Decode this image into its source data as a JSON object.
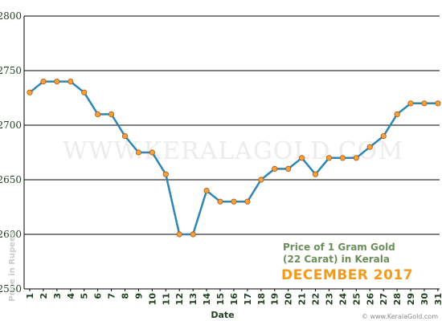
{
  "chart_data": {
    "type": "line",
    "title_lines": [
      "Price of 1 Gram Gold",
      "(22 Carat) in Kerala"
    ],
    "subtitle": "DECEMBER 2017",
    "xlabel": "Date",
    "ylabel": "Price in Rupees",
    "watermark": "WWW.KERALAGOLD.COM",
    "footer": "© www.KeralaGold.com",
    "ylim": [
      2550,
      2800
    ],
    "yticks": [
      2550,
      2600,
      2650,
      2700,
      2750,
      2800
    ],
    "x": [
      1,
      2,
      3,
      4,
      5,
      6,
      7,
      8,
      9,
      10,
      11,
      12,
      13,
      14,
      15,
      16,
      17,
      18,
      19,
      20,
      21,
      22,
      23,
      24,
      25,
      26,
      27,
      28,
      29,
      30,
      31
    ],
    "values": [
      2730,
      2740,
      2740,
      2740,
      2730,
      2710,
      2710,
      2690,
      2675,
      2675,
      2655,
      2600,
      2600,
      2640,
      2630,
      2630,
      2630,
      2650,
      2660,
      2660,
      2670,
      2655,
      2670,
      2670,
      2670,
      2680,
      2690,
      2710,
      2720,
      2720,
      2720
    ],
    "grid": true,
    "colors": {
      "line": "#2f86b5",
      "marker": "#f5a03c",
      "marker_edge": "#a85a10",
      "grid": "#000000"
    }
  }
}
